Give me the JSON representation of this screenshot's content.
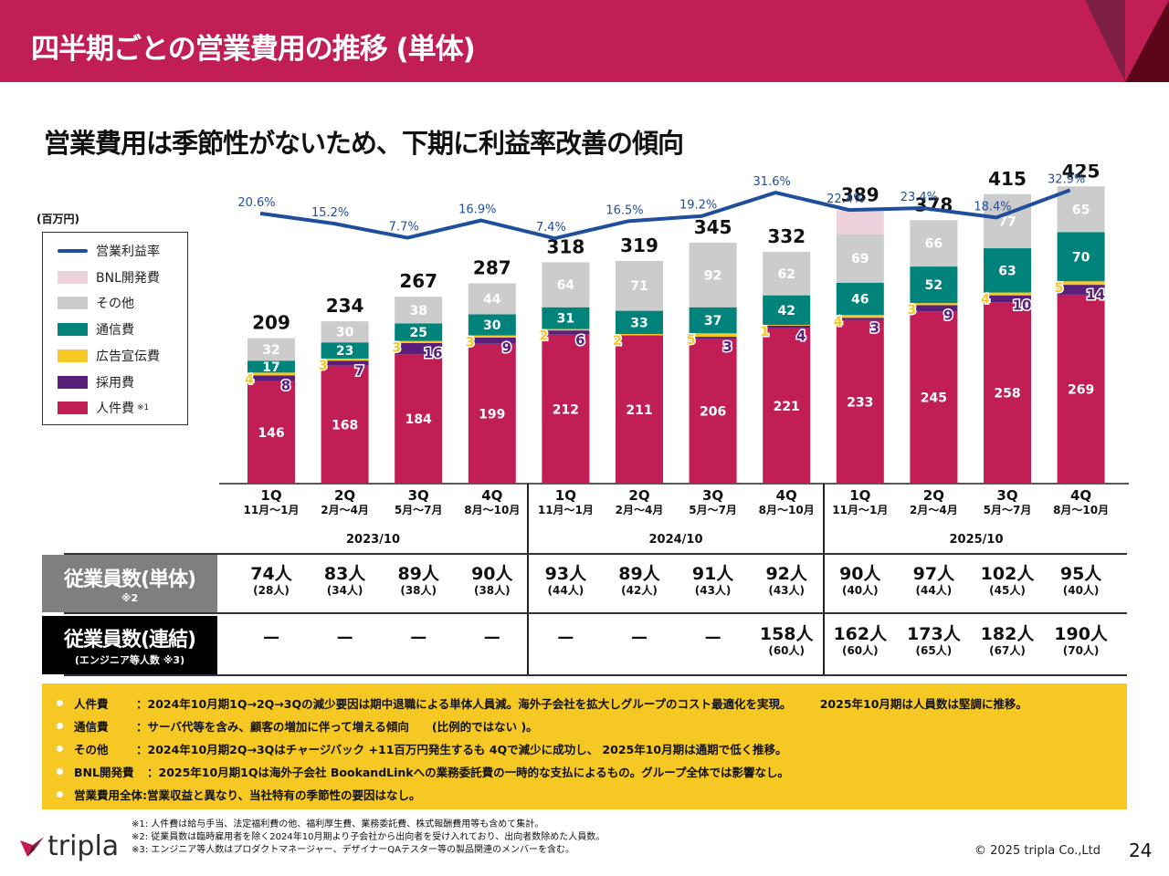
{
  "header": {
    "title": "四半期ごとの営業費用の推移 (単体)"
  },
  "subtitle": "営業費用は季節性がないため、下期に利益率改善の傾向",
  "unit_label": "(百万円)",
  "colors": {
    "header": "#c21e56",
    "personnel": "#c21e56",
    "recruiting": "#5a1f7a",
    "advertising": "#f5c823",
    "communication": "#00837a",
    "other": "#cccccc",
    "bnl": "#edd1dd",
    "margin_line": "#1f4e9c"
  },
  "legend": [
    {
      "key": "margin",
      "label": "営業利益率"
    },
    {
      "key": "bnl",
      "label": "BNL開発費"
    },
    {
      "key": "other",
      "label": "その他"
    },
    {
      "key": "communication",
      "label": "通信費"
    },
    {
      "key": "advertising",
      "label": "広告宣伝費"
    },
    {
      "key": "recruiting",
      "label": "採用費"
    },
    {
      "key": "personnel",
      "label": "人件費",
      "note": "※1"
    }
  ],
  "chart_data": {
    "type": "bar",
    "stacked": true,
    "title": "四半期ごとの営業費用の推移 (単体)",
    "ylabel": "(百万円)",
    "categories": [
      "1Q 2023/10",
      "2Q 2023/10",
      "3Q 2023/10",
      "4Q 2023/10",
      "1Q 2024/10",
      "2Q 2024/10",
      "3Q 2024/10",
      "4Q 2024/10",
      "1Q 2025/10",
      "2Q 2025/10",
      "3Q 2025/10",
      "4Q 2025/10"
    ],
    "quarters": [
      {
        "q": "1Q",
        "months": "11月～1月"
      },
      {
        "q": "2Q",
        "months": "2月～4月"
      },
      {
        "q": "3Q",
        "months": "5月～7月"
      },
      {
        "q": "4Q",
        "months": "8月～10月"
      },
      {
        "q": "1Q",
        "months": "11月～1月"
      },
      {
        "q": "2Q",
        "months": "2月～4月"
      },
      {
        "q": "3Q",
        "months": "5月～7月"
      },
      {
        "q": "4Q",
        "months": "8月～10月"
      },
      {
        "q": "1Q",
        "months": "11月～1月"
      },
      {
        "q": "2Q",
        "months": "2月～4月"
      },
      {
        "q": "3Q",
        "months": "5月～7月"
      },
      {
        "q": "4Q",
        "months": "8月～10月"
      }
    ],
    "fiscal_years": [
      "2023/10",
      "2024/10",
      "2025/10"
    ],
    "series": [
      {
        "name": "人件費",
        "key": "personnel",
        "values": [
          146,
          168,
          184,
          199,
          212,
          211,
          206,
          221,
          233,
          245,
          258,
          269
        ]
      },
      {
        "name": "採用費",
        "key": "recruiting",
        "values": [
          8,
          7,
          16,
          9,
          6,
          0,
          3,
          4,
          3,
          9,
          10,
          14
        ]
      },
      {
        "name": "広告宣伝費",
        "key": "advertising",
        "values": [
          4,
          3,
          3,
          3,
          2,
          2,
          5,
          1,
          4,
          3,
          4,
          5
        ]
      },
      {
        "name": "通信費",
        "key": "communication",
        "values": [
          17,
          23,
          25,
          30,
          31,
          33,
          37,
          42,
          46,
          52,
          63,
          70
        ]
      },
      {
        "name": "その他",
        "key": "other",
        "values": [
          32,
          30,
          38,
          44,
          64,
          71,
          92,
          62,
          69,
          66,
          77,
          65
        ]
      },
      {
        "name": "BNL開発費",
        "key": "bnl",
        "values": [
          0,
          0,
          0,
          0,
          0,
          0,
          0,
          0,
          34,
          0,
          0,
          0
        ],
        "labels_shown": false
      }
    ],
    "totals": [
      209,
      234,
      267,
      287,
      318,
      319,
      345,
      332,
      389,
      378,
      415,
      425
    ],
    "line_series": {
      "name": "営業利益率",
      "values": [
        20.6,
        15.2,
        7.7,
        16.9,
        7.4,
        16.5,
        19.2,
        31.6,
        22.4,
        23.4,
        18.4,
        32.9
      ],
      "labels": [
        "20.6%",
        "15.2%",
        "7.7%",
        "16.9%",
        "7.4%",
        "16.5%",
        "19.2%",
        "31.6%",
        "22.4%",
        "23.4%",
        "18.4%",
        "32.9%"
      ]
    },
    "ylim": [
      0,
      450
    ],
    "grid": false,
    "legend_position": "left"
  },
  "table": {
    "rows": [
      {
        "label": "従業員数(単体)",
        "sublabel": "※2",
        "values": [
          "74人",
          "83人",
          "89人",
          "90人",
          "93人",
          "89人",
          "91人",
          "92人",
          "90人",
          "97人",
          "102人",
          "95人"
        ],
        "subvalues": [
          "(28人)",
          "(34人)",
          "(38人)",
          "(38人)",
          "(44人)",
          "(42人)",
          "(43人)",
          "(43人)",
          "(40人)",
          "(44人)",
          "(45人)",
          "(40人)"
        ]
      },
      {
        "label": "従業員数(連結)",
        "sublabel": "(エンジニア等人数 ※3)",
        "values": [
          "—",
          "—",
          "—",
          "—",
          "—",
          "—",
          "—",
          "158人",
          "162人",
          "173人",
          "182人",
          "190人"
        ],
        "subvalues": [
          "",
          "",
          "",
          "",
          "",
          "",
          "",
          "(60人)",
          "(60人)",
          "(65人)",
          "(67人)",
          "(70人)"
        ]
      }
    ]
  },
  "notes": [
    {
      "key": "人件費",
      "text": "：2024年10月期1Q→2Q→3Qの減少要因は期中退職による単体人員減。海外子会社を拡大しグループのコスト最適化を実現。　　　2025年10月期は人員数は堅調に推移。"
    },
    {
      "key": "通信費",
      "text": "：サーバ代等を含み、顧客の増加に伴って増える傾向　　(比例的ではない )。"
    },
    {
      "key": "その他",
      "text": "：2024年10月期2Q→3Qはチャージバック +11百万円発生するも 4Qで減少に成功し、 2025年10月期は通期で低く推移。"
    },
    {
      "key": "BNL開発費",
      "text": "：2025年10月期1Qは海外子会社 BookandLinkへの業務委託費の一時的な支払によるもの。グループ全体では影響なし。"
    },
    {
      "key": "営業費用全体",
      "text": ":営業収益と異なり、当社特有の季節性の要因はなし。"
    }
  ],
  "footnotes": [
    "※1: 人件費は給与手当、法定福利費の他、福利厚生費、業務委託費、株式報酬費用等も含めて集計。",
    "※2: 従業員数は臨時雇用者を除く2024年10月期より子会社から出向者を受け入れており、出向者数除めた人員数。",
    "※3: エンジニア等人数はプロダクトマネージャー、デザイナーQAテスター等の製品関連のメンバーを含む。"
  ],
  "footer": {
    "logo_text": "tripla",
    "copyright": "© 2025 tripla Co.,Ltd",
    "page_number": "24"
  }
}
